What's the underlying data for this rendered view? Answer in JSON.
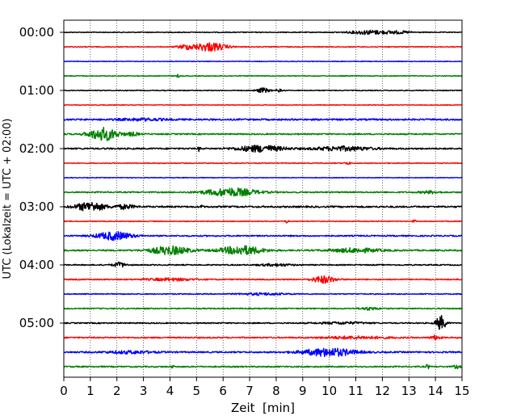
{
  "chart_data": {
    "type": "line",
    "title": "",
    "xlabel": "Zeit  [min]",
    "ylabel": "UTC (Lokalzeit = UTC + 02:00)",
    "xlim": [
      0,
      15
    ],
    "x_ticks": [
      0,
      1,
      2,
      3,
      4,
      5,
      6,
      7,
      8,
      9,
      10,
      11,
      12,
      13,
      14,
      15
    ],
    "x_tick_labels": [
      "0",
      "1",
      "2",
      "3",
      "4",
      "5",
      "6",
      "7",
      "8",
      "9",
      "10",
      "11",
      "12",
      "13",
      "14",
      "15"
    ],
    "grid": "vertical dotted",
    "row_colors": [
      "#000000",
      "#ff0000",
      "#0000ff",
      "#008000"
    ],
    "traces": [
      {
        "start": "00:00",
        "label": "00:00",
        "color": "#000000",
        "noise": 0.5,
        "events": [
          {
            "t": 11.5,
            "w": 1.2,
            "a": 2.5
          },
          {
            "t": 12.6,
            "w": 0.8,
            "a": 1.5
          }
        ]
      },
      {
        "start": "00:15",
        "label": "",
        "color": "#ff0000",
        "noise": 0.5,
        "events": [
          {
            "t": 5.5,
            "w": 1.0,
            "a": 5.5
          },
          {
            "t": 4.6,
            "w": 0.5,
            "a": 2.5
          }
        ]
      },
      {
        "start": "00:30",
        "label": "",
        "color": "#0000ff",
        "noise": 0.4,
        "events": []
      },
      {
        "start": "00:45",
        "label": "",
        "color": "#008000",
        "noise": 0.5,
        "events": [
          {
            "t": 4.3,
            "w": 0.08,
            "a": 2.0
          }
        ]
      },
      {
        "start": "01:00",
        "label": "01:00",
        "color": "#000000",
        "noise": 0.5,
        "events": [
          {
            "t": 7.5,
            "w": 0.4,
            "a": 3.0
          },
          {
            "t": 8.1,
            "w": 0.2,
            "a": 1.5
          }
        ]
      },
      {
        "start": "01:15",
        "label": "",
        "color": "#ff0000",
        "noise": 0.4,
        "events": []
      },
      {
        "start": "01:30",
        "label": "",
        "color": "#0000ff",
        "noise": 1.0,
        "events": [
          {
            "t": 3.0,
            "w": 1.5,
            "a": 1.2
          }
        ]
      },
      {
        "start": "01:45",
        "label": "",
        "color": "#008000",
        "noise": 0.8,
        "events": [
          {
            "t": 1.5,
            "w": 0.9,
            "a": 8.0
          },
          {
            "t": 2.6,
            "w": 0.4,
            "a": 2.0
          }
        ]
      },
      {
        "start": "02:00",
        "label": "02:00",
        "color": "#000000",
        "noise": 0.9,
        "events": [
          {
            "t": 5.1,
            "w": 0.08,
            "a": 3.0
          },
          {
            "t": 7.4,
            "w": 1.4,
            "a": 4.0
          },
          {
            "t": 10.5,
            "w": 1.8,
            "a": 2.5
          }
        ]
      },
      {
        "start": "02:15",
        "label": "",
        "color": "#ff0000",
        "noise": 0.5,
        "events": [
          {
            "t": 10.7,
            "w": 0.2,
            "a": 1.5
          }
        ]
      },
      {
        "start": "02:30",
        "label": "",
        "color": "#0000ff",
        "noise": 0.4,
        "events": []
      },
      {
        "start": "02:45",
        "label": "",
        "color": "#008000",
        "noise": 0.8,
        "events": [
          {
            "t": 6.3,
            "w": 1.6,
            "a": 5.0
          },
          {
            "t": 13.8,
            "w": 0.6,
            "a": 1.5
          }
        ]
      },
      {
        "start": "03:00",
        "label": "03:00",
        "color": "#000000",
        "noise": 1.0,
        "events": [
          {
            "t": 1.0,
            "w": 0.9,
            "a": 5.5
          },
          {
            "t": 2.3,
            "w": 0.6,
            "a": 2.5
          },
          {
            "t": 5.2,
            "w": 0.06,
            "a": 3.0
          }
        ]
      },
      {
        "start": "03:15",
        "label": "",
        "color": "#ff0000",
        "noise": 0.5,
        "events": [
          {
            "t": 8.4,
            "w": 0.1,
            "a": 1.8
          },
          {
            "t": 13.2,
            "w": 0.1,
            "a": 1.8
          }
        ]
      },
      {
        "start": "03:30",
        "label": "",
        "color": "#0000ff",
        "noise": 0.8,
        "events": [
          {
            "t": 1.9,
            "w": 1.1,
            "a": 5.0
          }
        ]
      },
      {
        "start": "03:45",
        "label": "",
        "color": "#008000",
        "noise": 0.9,
        "events": [
          {
            "t": 4.0,
            "w": 1.2,
            "a": 5.0
          },
          {
            "t": 6.7,
            "w": 1.3,
            "a": 5.5
          },
          {
            "t": 11.0,
            "w": 1.5,
            "a": 2.5
          }
        ]
      },
      {
        "start": "04:00",
        "label": "04:00",
        "color": "#000000",
        "noise": 0.7,
        "events": [
          {
            "t": 2.1,
            "w": 0.4,
            "a": 3.0
          },
          {
            "t": 8.0,
            "w": 1.0,
            "a": 1.3
          }
        ]
      },
      {
        "start": "04:15",
        "label": "",
        "color": "#ff0000",
        "noise": 0.7,
        "events": [
          {
            "t": 9.8,
            "w": 0.7,
            "a": 4.5
          },
          {
            "t": 4.0,
            "w": 1.5,
            "a": 1.5
          }
        ]
      },
      {
        "start": "04:30",
        "label": "",
        "color": "#0000ff",
        "noise": 0.6,
        "events": [
          {
            "t": 7.5,
            "w": 1.5,
            "a": 1.2
          }
        ]
      },
      {
        "start": "04:45",
        "label": "",
        "color": "#008000",
        "noise": 0.7,
        "events": [
          {
            "t": 11.5,
            "w": 0.5,
            "a": 1.8
          }
        ]
      },
      {
        "start": "05:00",
        "label": "05:00",
        "color": "#000000",
        "noise": 0.7,
        "events": [
          {
            "t": 14.2,
            "w": 0.3,
            "a": 9.0
          },
          {
            "t": 10.5,
            "w": 1.5,
            "a": 1.2
          }
        ]
      },
      {
        "start": "05:15",
        "label": "",
        "color": "#ff0000",
        "noise": 0.8,
        "events": [
          {
            "t": 11.0,
            "w": 2.0,
            "a": 1.5
          },
          {
            "t": 14.0,
            "w": 0.3,
            "a": 2.5
          }
        ]
      },
      {
        "start": "05:30",
        "label": "",
        "color": "#0000ff",
        "noise": 0.9,
        "events": [
          {
            "t": 10.0,
            "w": 1.6,
            "a": 5.0
          },
          {
            "t": 2.5,
            "w": 1.5,
            "a": 1.5
          }
        ]
      },
      {
        "start": "05:45",
        "label": "",
        "color": "#008000",
        "noise": 0.8,
        "events": [
          {
            "t": 4.1,
            "w": 0.06,
            "a": 3.0
          },
          {
            "t": 13.7,
            "w": 0.08,
            "a": 4.0
          },
          {
            "t": 14.8,
            "w": 0.2,
            "a": 2.0
          }
        ]
      }
    ]
  }
}
